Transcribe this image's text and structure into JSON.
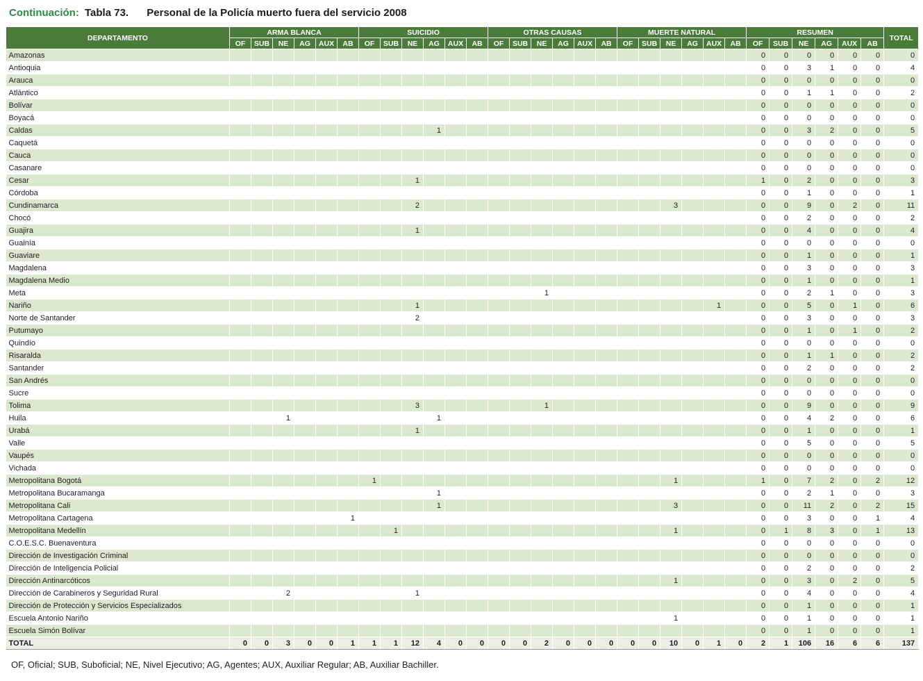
{
  "title": {
    "continuation": "Continuación:",
    "table_ref": "Tabla 73.",
    "text": "Personal de la Policía muerto fuera del servicio 2008"
  },
  "footnote": "OF, Oficial; SUB, Suboficial; NE, Nivel Ejecutivo; AG, Agentes; AUX, Auxiliar Regular; AB, Auxiliar Bachiller.",
  "colors": {
    "header_green": "#4a7b3b",
    "row_green": "#dde8d0",
    "title_green": "#2e8b44"
  },
  "table": {
    "dept_header": "DEPARTAMENTO",
    "groups": [
      "ARMA BLANCA",
      "SUICIDIO",
      "OTRAS CAUSAS",
      "MUERTE NATURAL",
      "RESUMEN"
    ],
    "subcols": [
      "OF",
      "SUB",
      "NE",
      "AG",
      "AUX",
      "AB"
    ],
    "total_header": "TOTAL",
    "rows": [
      {
        "dept": "Amazonas",
        "marks": {},
        "resumen": [
          0,
          0,
          0,
          0,
          0,
          0
        ],
        "total": 0
      },
      {
        "dept": "Antioquia",
        "marks": {},
        "resumen": [
          0,
          0,
          3,
          1,
          0,
          0
        ],
        "total": 4
      },
      {
        "dept": "Arauca",
        "marks": {},
        "resumen": [
          0,
          0,
          0,
          0,
          0,
          0
        ],
        "total": 0
      },
      {
        "dept": "Atlántico",
        "marks": {},
        "resumen": [
          0,
          0,
          1,
          1,
          0,
          0
        ],
        "total": 2
      },
      {
        "dept": "Bolívar",
        "marks": {},
        "resumen": [
          0,
          0,
          0,
          0,
          0,
          0
        ],
        "total": 0
      },
      {
        "dept": "Boyacá",
        "marks": {},
        "resumen": [
          0,
          0,
          0,
          0,
          0,
          0
        ],
        "total": 0
      },
      {
        "dept": "Caldas",
        "marks": {
          "9": "1"
        },
        "resumen": [
          0,
          0,
          3,
          2,
          0,
          0
        ],
        "total": 5
      },
      {
        "dept": "Caquetá",
        "marks": {},
        "resumen": [
          0,
          0,
          0,
          0,
          0,
          0
        ],
        "total": 0
      },
      {
        "dept": "Cauca",
        "marks": {},
        "resumen": [
          0,
          0,
          0,
          0,
          0,
          0
        ],
        "total": 0
      },
      {
        "dept": "Casanare",
        "marks": {},
        "resumen": [
          0,
          0,
          0,
          0,
          0,
          0
        ],
        "total": 0
      },
      {
        "dept": "Cesar",
        "marks": {
          "8": "1"
        },
        "resumen": [
          1,
          0,
          2,
          0,
          0,
          0
        ],
        "total": 3
      },
      {
        "dept": "Córdoba",
        "marks": {},
        "resumen": [
          0,
          0,
          1,
          0,
          0,
          0
        ],
        "total": 1
      },
      {
        "dept": "Cundinamarca",
        "marks": {
          "8": "2",
          "20": "3"
        },
        "resumen": [
          0,
          0,
          9,
          0,
          2,
          0
        ],
        "total": 11
      },
      {
        "dept": "Chocó",
        "marks": {},
        "resumen": [
          0,
          0,
          2,
          0,
          0,
          0
        ],
        "total": 2
      },
      {
        "dept": "Guajira",
        "marks": {
          "8": "1"
        },
        "resumen": [
          0,
          0,
          4,
          0,
          0,
          0
        ],
        "total": 4
      },
      {
        "dept": "Guainía",
        "marks": {},
        "resumen": [
          0,
          0,
          0,
          0,
          0,
          0
        ],
        "total": 0
      },
      {
        "dept": "Guaviare",
        "marks": {},
        "resumen": [
          0,
          0,
          1,
          0,
          0,
          0
        ],
        "total": 1
      },
      {
        "dept": "Magdalena",
        "marks": {},
        "resumen": [
          0,
          0,
          3,
          0,
          0,
          0
        ],
        "total": 3
      },
      {
        "dept": "Magdalena Medio",
        "marks": {},
        "resumen": [
          0,
          0,
          1,
          0,
          0,
          0
        ],
        "total": 1
      },
      {
        "dept": "Meta",
        "marks": {
          "14": "1"
        },
        "resumen": [
          0,
          0,
          2,
          1,
          0,
          0
        ],
        "total": 3
      },
      {
        "dept": "Nariño",
        "marks": {
          "8": "1",
          "22": "1"
        },
        "resumen": [
          0,
          0,
          5,
          0,
          1,
          0
        ],
        "total": 6
      },
      {
        "dept": "Norte de Santander",
        "marks": {
          "8": "2"
        },
        "resumen": [
          0,
          0,
          3,
          0,
          0,
          0
        ],
        "total": 3
      },
      {
        "dept": "Putumayo",
        "marks": {},
        "resumen": [
          0,
          0,
          1,
          0,
          1,
          0
        ],
        "total": 2
      },
      {
        "dept": "Quindío",
        "marks": {},
        "resumen": [
          0,
          0,
          0,
          0,
          0,
          0
        ],
        "total": 0
      },
      {
        "dept": "Risaralda",
        "marks": {},
        "resumen": [
          0,
          0,
          1,
          1,
          0,
          0
        ],
        "total": 2
      },
      {
        "dept": "Santander",
        "marks": {},
        "resumen": [
          0,
          0,
          2,
          0,
          0,
          0
        ],
        "total": 2
      },
      {
        "dept": "San Andrés",
        "marks": {},
        "resumen": [
          0,
          0,
          0,
          0,
          0,
          0
        ],
        "total": 0
      },
      {
        "dept": "Sucre",
        "marks": {},
        "resumen": [
          0,
          0,
          0,
          0,
          0,
          0
        ],
        "total": 0
      },
      {
        "dept": "Tolima",
        "marks": {
          "8": "3",
          "14": "1"
        },
        "resumen": [
          0,
          0,
          9,
          0,
          0,
          0
        ],
        "total": 9
      },
      {
        "dept": "Huila",
        "marks": {
          "2": "1",
          "9": "1"
        },
        "resumen": [
          0,
          0,
          4,
          2,
          0,
          0
        ],
        "total": 6
      },
      {
        "dept": "Urabá",
        "marks": {
          "8": "1"
        },
        "resumen": [
          0,
          0,
          1,
          0,
          0,
          0
        ],
        "total": 1
      },
      {
        "dept": "Valle",
        "marks": {},
        "resumen": [
          0,
          0,
          5,
          0,
          0,
          0
        ],
        "total": 5
      },
      {
        "dept": "Vaupés",
        "marks": {},
        "resumen": [
          0,
          0,
          0,
          0,
          0,
          0
        ],
        "total": 0
      },
      {
        "dept": "Vichada",
        "marks": {},
        "resumen": [
          0,
          0,
          0,
          0,
          0,
          0
        ],
        "total": 0
      },
      {
        "dept": "Metropolitana Bogotá",
        "marks": {
          "6": "1",
          "20": "1"
        },
        "resumen": [
          1,
          0,
          7,
          2,
          0,
          2
        ],
        "total": 12
      },
      {
        "dept": "Metropolitana Bucaramanga",
        "marks": {
          "9": "1"
        },
        "resumen": [
          0,
          0,
          2,
          1,
          0,
          0
        ],
        "total": 3
      },
      {
        "dept": "Metropolitana Cali",
        "marks": {
          "9": "1",
          "20": "3"
        },
        "resumen": [
          0,
          0,
          11,
          2,
          0,
          2
        ],
        "total": 15
      },
      {
        "dept": "Metropolitana Cartagena",
        "marks": {
          "5": "1"
        },
        "resumen": [
          0,
          0,
          3,
          0,
          0,
          1
        ],
        "total": 4
      },
      {
        "dept": "Metropolitana Medellín",
        "marks": {
          "7": "1",
          "20": "1"
        },
        "resumen": [
          0,
          1,
          8,
          3,
          0,
          1
        ],
        "total": 13
      },
      {
        "dept": "C.O.E.S.C. Buenaventura",
        "marks": {},
        "resumen": [
          0,
          0,
          0,
          0,
          0,
          0
        ],
        "total": 0
      },
      {
        "dept": "Dirección de Investigación Criminal",
        "marks": {},
        "resumen": [
          0,
          0,
          0,
          0,
          0,
          0
        ],
        "total": 0
      },
      {
        "dept": "Dirección de Inteligencia Policial",
        "marks": {},
        "resumen": [
          0,
          0,
          2,
          0,
          0,
          0
        ],
        "total": 2
      },
      {
        "dept": "Dirección Antinarcóticos",
        "marks": {
          "20": "1"
        },
        "resumen": [
          0,
          0,
          3,
          0,
          2,
          0
        ],
        "total": 5
      },
      {
        "dept": "Dirección de Carabineros y Seguridad Rural",
        "marks": {
          "2": "2",
          "8": "1"
        },
        "resumen": [
          0,
          0,
          4,
          0,
          0,
          0
        ],
        "total": 4
      },
      {
        "dept": "Dirección de Protección y Servicios Especializados",
        "marks": {},
        "resumen": [
          0,
          0,
          1,
          0,
          0,
          0
        ],
        "total": 1
      },
      {
        "dept": "Escuela Antonio Nariño",
        "marks": {
          "20": "1"
        },
        "resumen": [
          0,
          0,
          1,
          0,
          0,
          0
        ],
        "total": 1
      },
      {
        "dept": "Escuela Simón Bolívar",
        "marks": {},
        "resumen": [
          0,
          0,
          1,
          0,
          0,
          0
        ],
        "total": 1
      }
    ],
    "total_row": {
      "label": "TOTAL",
      "groups": [
        0,
        0,
        3,
        0,
        0,
        1,
        1,
        1,
        12,
        4,
        0,
        0,
        0,
        0,
        2,
        0,
        0,
        0,
        0,
        0,
        10,
        0,
        1,
        0
      ],
      "resumen": [
        2,
        1,
        106,
        16,
        6,
        6
      ],
      "total": 137
    }
  }
}
